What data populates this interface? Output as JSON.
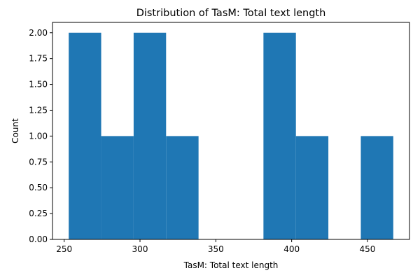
{
  "chart_data": {
    "type": "bar",
    "title": "Distribution of TasM: Total text length",
    "xlabel": "TasM: Total text length",
    "ylabel": "Count",
    "bin_edges": [
      253,
      274.4,
      295.8,
      317.2,
      338.6,
      360,
      381.4,
      402.8,
      424.2,
      445.6,
      467
    ],
    "values": [
      2,
      1,
      2,
      1,
      0,
      0,
      2,
      1,
      0,
      1
    ],
    "xlim": [
      242.3,
      477.7
    ],
    "ylim": [
      0,
      2.1
    ],
    "xticks": [
      250,
      300,
      350,
      400,
      450
    ],
    "xtick_labels": [
      "250",
      "300",
      "350",
      "400",
      "450"
    ],
    "yticks": [
      0,
      0.25,
      0.5,
      0.75,
      1.0,
      1.25,
      1.5,
      1.75,
      2.0
    ],
    "ytick_labels": [
      "0.00",
      "0.25",
      "0.50",
      "0.75",
      "1.00",
      "1.25",
      "1.50",
      "1.75",
      "2.00"
    ],
    "bar_color": "#1f77b4",
    "grid": false
  }
}
